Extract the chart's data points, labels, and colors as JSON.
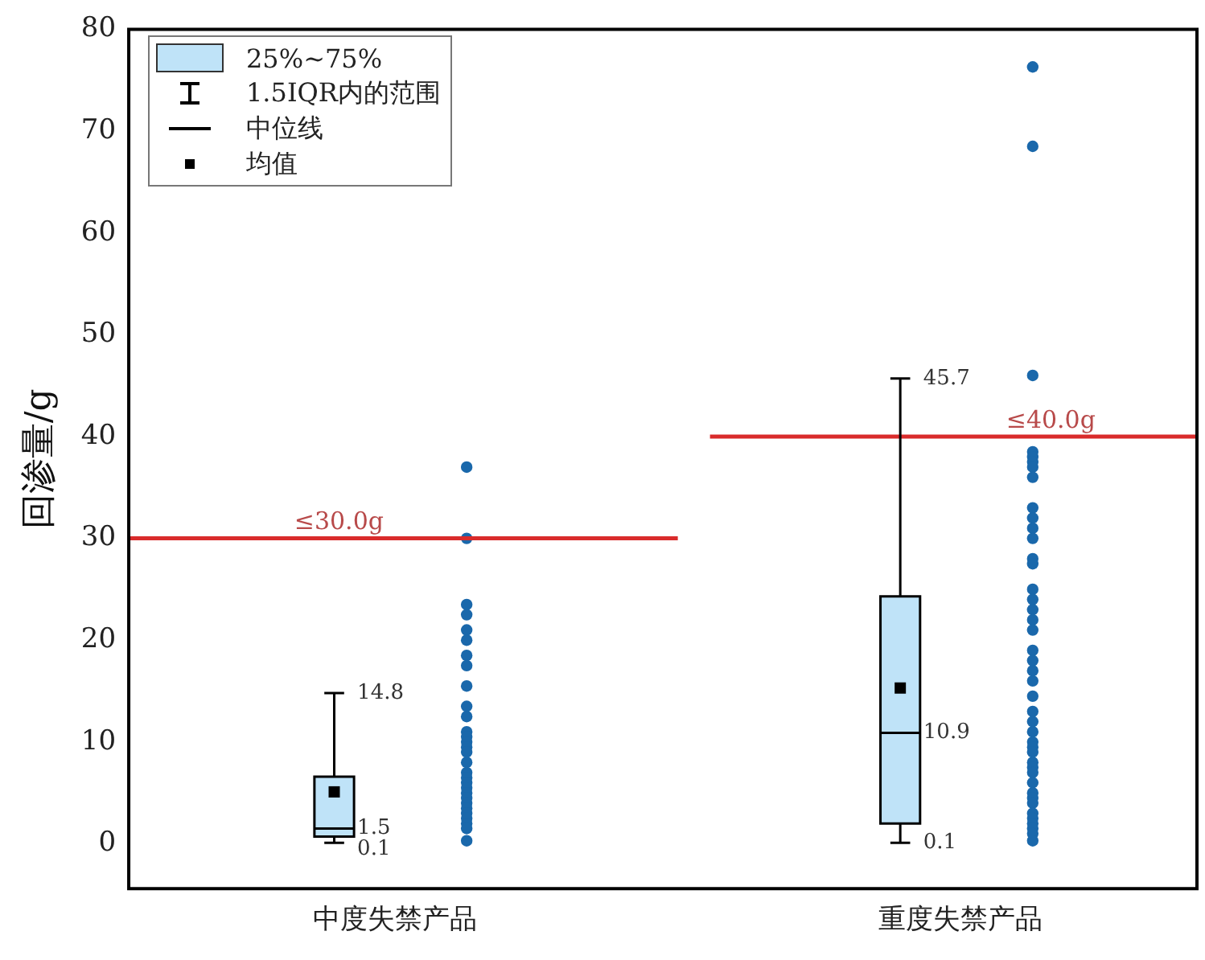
{
  "chart_data": {
    "type": "box",
    "ylabel": "回渗量/g",
    "categories": [
      "中度失禁产品",
      "重度失禁产品"
    ],
    "ylim": [
      -4.4,
      80
    ],
    "yticks": [
      0,
      10,
      20,
      30,
      40,
      50,
      60,
      70,
      80
    ],
    "grid": false,
    "series": [
      {
        "type": "box",
        "color": "#bfe3f8",
        "boxes": [
          {
            "low": 0.1,
            "q1": 0.7,
            "median": 1.5,
            "q3": 6.6,
            "high": 14.8,
            "mean": 5.1
          },
          {
            "low": 0.1,
            "q1": 2.0,
            "median": 10.9,
            "q3": 24.3,
            "high": 45.7,
            "mean": 15.3
          }
        ]
      },
      {
        "type": "scatter",
        "color": "#1a68ab",
        "x": [
          "中度失禁产品",
          "中度失禁产品",
          "中度失禁产品",
          "中度失禁产品",
          "中度失禁产品",
          "中度失禁产品",
          "中度失禁产品",
          "中度失禁产品",
          "中度失禁产品",
          "中度失禁产品",
          "中度失禁产品",
          "中度失禁产品",
          "中度失禁产品",
          "中度失禁产品",
          "中度失禁产品",
          "中度失禁产品",
          "中度失禁产品",
          "中度失禁产品",
          "中度失禁产品",
          "中度失禁产品",
          "中度失禁产品",
          "中度失禁产品",
          "中度失禁产品",
          "中度失禁产品",
          "中度失禁产品",
          "中度失禁产品",
          "中度失禁产品",
          "中度失禁产品",
          "中度失禁产品",
          "中度失禁产品"
        ],
        "values": [
          37,
          30,
          23.5,
          22.5,
          21,
          20,
          18.5,
          17.5,
          15.5,
          13.5,
          12.5,
          11,
          10.5,
          10,
          9.5,
          9,
          8,
          7,
          6.5,
          6,
          5.5,
          5,
          4.5,
          4,
          3.5,
          3,
          2.5,
          2,
          1.5,
          0.3
        ]
      },
      {
        "type": "scatter",
        "color": "#1a68ab",
        "x": [
          "重度失禁产品",
          "重度失禁产品",
          "重度失禁产品",
          "重度失禁产品",
          "重度失禁产品",
          "重度失禁产品",
          "重度失禁产品",
          "重度失禁产品",
          "重度失禁产品",
          "重度失禁产品",
          "重度失禁产品",
          "重度失禁产品",
          "重度失禁产品",
          "重度失禁产品",
          "重度失禁产品",
          "重度失禁产品",
          "重度失禁产品",
          "重度失禁产品",
          "重度失禁产品",
          "重度失禁产品",
          "重度失禁产品",
          "重度失禁产品",
          "重度失禁产品",
          "重度失禁产品",
          "重度失禁产品",
          "重度失禁产品",
          "重度失禁产品",
          "重度失禁产品",
          "重度失禁产品",
          "重度失禁产品",
          "重度失禁产品",
          "重度失禁产品",
          "重度失禁产品",
          "重度失禁产品",
          "重度失禁产品",
          "重度失禁产品",
          "重度失禁产品",
          "重度失禁产品",
          "重度失禁产品",
          "重度失禁产品",
          "重度失禁产品",
          "重度失禁产品",
          "重度失禁产品"
        ],
        "values": [
          76.3,
          68.5,
          46,
          38.5,
          38,
          37.5,
          37,
          36,
          33,
          32,
          31,
          30,
          28,
          27.5,
          25,
          24,
          23,
          22,
          21,
          19,
          18,
          17,
          16,
          14.5,
          13,
          12,
          11,
          10,
          9.5,
          9,
          8,
          7.5,
          7,
          6,
          5,
          4.5,
          4,
          3,
          2.5,
          2,
          1.5,
          1,
          0.3
        ]
      }
    ],
    "ref_lines": [
      {
        "axis": "y",
        "value": 30,
        "label": "≤30.0g",
        "color": "#d92b2b"
      },
      {
        "axis": "y",
        "value": 40,
        "label": "≤40.0g",
        "color": "#d92b2b"
      }
    ],
    "annotations": [
      "25%~75%",
      "1.5IQR内的范围",
      "中位线",
      "均值",
      "14.8",
      "1.5",
      "0.1",
      "45.7",
      "10.9",
      "0.1"
    ]
  }
}
